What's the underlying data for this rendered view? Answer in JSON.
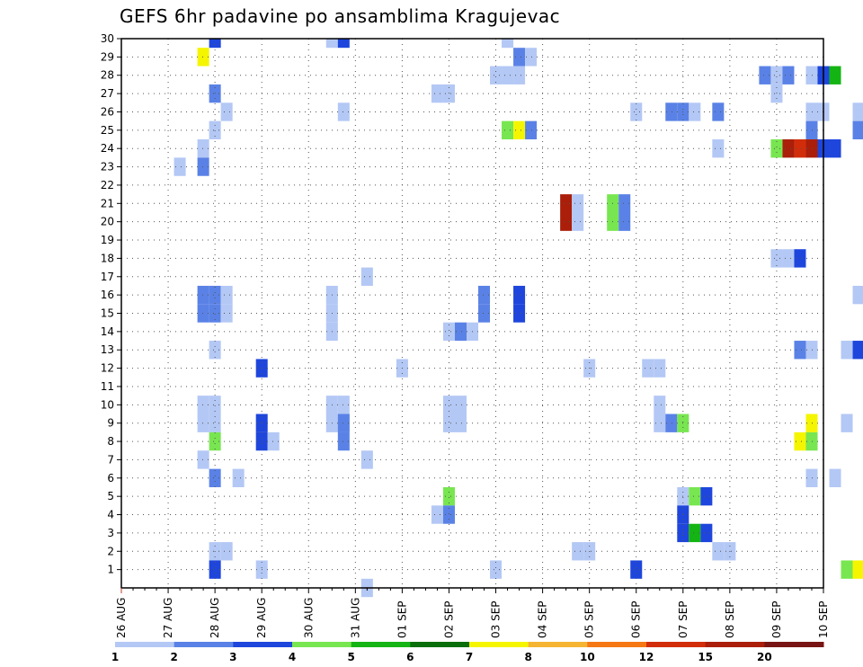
{
  "chart_data": {
    "type": "heatmap",
    "title": "GEFS 6hr padavine po ansamblima Kragujevac",
    "xlabel": "",
    "ylabel": "",
    "x_tick_labels": [
      "26 AUG",
      "27 AUG",
      "28 AUG",
      "29 AUG",
      "30 AUG",
      "31 AUG",
      "01 SEP",
      "02 SEP",
      "03 SEP",
      "04 SEP",
      "05 SEP",
      "06 SEP",
      "07 SEP",
      "08 SEP",
      "09 SEP",
      "10 SEP"
    ],
    "xlim": [
      0,
      15
    ],
    "ylim": [
      0,
      30
    ],
    "y_tick_labels": [
      "1",
      "2",
      "3",
      "4",
      "5",
      "6",
      "7",
      "8",
      "9",
      "10",
      "11",
      "12",
      "13",
      "14",
      "15",
      "16",
      "17",
      "18",
      "19",
      "20",
      "21",
      "22",
      "23",
      "24",
      "25",
      "26",
      "27",
      "28",
      "29",
      "30"
    ],
    "time_step_hours": 6,
    "grid": true,
    "legend": "bottom",
    "colorbar": {
      "levels": [
        "1",
        "2",
        "3",
        "4",
        "5",
        "6",
        "7",
        "8",
        "10",
        "12",
        "15",
        "20"
      ],
      "colors": [
        "#b4c8f5",
        "#5a82e6",
        "#1e46dc",
        "#78e650",
        "#14b414",
        "#0a6e0a",
        "#f5f500",
        "#f5b432",
        "#f57814",
        "#d22d0a",
        "#aa1e0a",
        "#781414"
      ]
    },
    "points": [
      [
        2.0,
        30,
        3
      ],
      [
        4.5,
        30,
        1
      ],
      [
        4.75,
        30,
        3
      ],
      [
        8.25,
        30,
        1
      ],
      [
        1.75,
        29,
        7
      ],
      [
        8.5,
        29,
        2
      ],
      [
        8.75,
        29,
        1
      ],
      [
        8.0,
        28,
        1
      ],
      [
        8.25,
        28,
        1
      ],
      [
        8.5,
        28,
        1
      ],
      [
        13.75,
        28,
        2
      ],
      [
        14.0,
        28,
        1
      ],
      [
        14.25,
        28,
        2
      ],
      [
        14.75,
        28,
        1
      ],
      [
        15.0,
        28,
        3
      ],
      [
        15.25,
        28,
        5
      ],
      [
        2.0,
        27,
        2
      ],
      [
        6.75,
        27,
        1
      ],
      [
        7.0,
        27,
        1
      ],
      [
        14.0,
        27,
        1
      ],
      [
        2.25,
        26,
        1
      ],
      [
        4.75,
        26,
        1
      ],
      [
        11.0,
        26,
        1
      ],
      [
        11.75,
        26,
        2
      ],
      [
        12.0,
        26,
        2
      ],
      [
        12.25,
        26,
        1
      ],
      [
        12.75,
        26,
        2
      ],
      [
        14.75,
        26,
        1
      ],
      [
        15.0,
        26,
        1
      ],
      [
        15.75,
        26,
        1
      ],
      [
        2.0,
        25,
        1
      ],
      [
        8.25,
        25,
        4
      ],
      [
        8.5,
        25,
        7.5
      ],
      [
        8.75,
        25,
        2
      ],
      [
        14.75,
        25,
        2
      ],
      [
        15.75,
        25,
        2
      ],
      [
        1.75,
        24,
        1
      ],
      [
        12.75,
        24,
        1
      ],
      [
        14.0,
        24,
        4
      ],
      [
        14.25,
        24,
        15
      ],
      [
        14.5,
        24,
        12
      ],
      [
        14.75,
        24,
        15
      ],
      [
        15.0,
        24,
        3
      ],
      [
        15.25,
        24,
        3
      ],
      [
        1.25,
        23,
        1
      ],
      [
        1.75,
        23,
        2
      ],
      [
        9.5,
        21,
        15
      ],
      [
        9.75,
        21,
        1
      ],
      [
        10.5,
        21,
        4
      ],
      [
        10.75,
        21,
        2
      ],
      [
        9.5,
        20,
        15
      ],
      [
        9.75,
        20,
        1
      ],
      [
        10.5,
        20,
        4
      ],
      [
        10.75,
        20,
        2
      ],
      [
        14.0,
        18,
        1
      ],
      [
        14.25,
        18,
        1
      ],
      [
        14.5,
        18,
        3
      ],
      [
        5.25,
        17,
        1
      ],
      [
        1.75,
        16,
        2
      ],
      [
        2.0,
        16,
        2
      ],
      [
        2.25,
        16,
        1
      ],
      [
        4.5,
        16,
        1
      ],
      [
        7.75,
        16,
        2
      ],
      [
        8.5,
        16,
        3
      ],
      [
        15.75,
        16,
        1
      ],
      [
        1.75,
        15,
        2
      ],
      [
        2.0,
        15,
        2
      ],
      [
        2.25,
        15,
        1
      ],
      [
        4.5,
        15,
        1
      ],
      [
        7.75,
        15,
        2
      ],
      [
        8.5,
        15,
        3
      ],
      [
        4.5,
        14,
        1
      ],
      [
        7.0,
        14,
        1
      ],
      [
        7.25,
        14,
        2
      ],
      [
        7.5,
        14,
        1
      ],
      [
        2.0,
        13,
        1
      ],
      [
        14.5,
        13,
        2
      ],
      [
        14.75,
        13,
        1
      ],
      [
        15.5,
        13,
        1
      ],
      [
        15.75,
        13,
        3
      ],
      [
        3.0,
        12,
        3
      ],
      [
        6.0,
        12,
        1
      ],
      [
        10.0,
        12,
        1
      ],
      [
        11.25,
        12,
        1
      ],
      [
        11.5,
        12,
        1
      ],
      [
        1.75,
        10,
        1
      ],
      [
        2.0,
        10,
        1
      ],
      [
        4.5,
        10,
        1
      ],
      [
        4.75,
        10,
        1
      ],
      [
        7.0,
        10,
        1
      ],
      [
        7.25,
        10,
        1
      ],
      [
        11.5,
        10,
        1
      ],
      [
        1.75,
        9,
        1
      ],
      [
        2.0,
        9,
        1
      ],
      [
        4.5,
        9,
        1
      ],
      [
        4.75,
        9,
        1
      ],
      [
        7.0,
        9,
        1
      ],
      [
        7.25,
        9,
        1
      ],
      [
        11.5,
        9,
        1
      ],
      [
        3.0,
        9,
        3
      ],
      [
        4.75,
        9,
        2
      ],
      [
        11.75,
        9,
        2
      ],
      [
        12.0,
        9,
        4
      ],
      [
        14.75,
        9,
        7
      ],
      [
        15.5,
        9,
        1
      ],
      [
        2.0,
        8,
        4
      ],
      [
        3.0,
        8,
        3
      ],
      [
        3.25,
        8,
        1
      ],
      [
        4.75,
        8,
        2
      ],
      [
        14.5,
        8,
        7
      ],
      [
        14.75,
        8,
        4
      ],
      [
        1.75,
        7,
        1
      ],
      [
        5.25,
        7,
        1
      ],
      [
        2.0,
        6,
        2
      ],
      [
        2.5,
        6,
        1
      ],
      [
        14.75,
        6,
        1
      ],
      [
        15.25,
        6,
        1
      ],
      [
        7.0,
        5,
        4
      ],
      [
        12.0,
        5,
        1
      ],
      [
        12.25,
        5,
        4
      ],
      [
        12.5,
        5,
        3
      ],
      [
        6.75,
        4,
        1
      ],
      [
        7.0,
        4,
        2
      ],
      [
        12.0,
        4,
        3
      ],
      [
        12.0,
        3,
        3
      ],
      [
        12.25,
        3,
        5
      ],
      [
        12.5,
        3,
        3
      ],
      [
        2.0,
        2,
        1
      ],
      [
        2.25,
        2,
        1
      ],
      [
        9.75,
        2,
        1
      ],
      [
        10.0,
        2,
        1
      ],
      [
        12.75,
        2,
        1
      ],
      [
        13.0,
        2,
        1
      ],
      [
        2.0,
        1,
        3
      ],
      [
        3.0,
        1,
        1
      ],
      [
        8.0,
        1,
        1
      ],
      [
        11.0,
        1,
        3
      ],
      [
        15.5,
        1,
        4
      ],
      [
        15.75,
        1,
        7.5
      ],
      [
        5.25,
        0,
        1
      ]
    ]
  }
}
